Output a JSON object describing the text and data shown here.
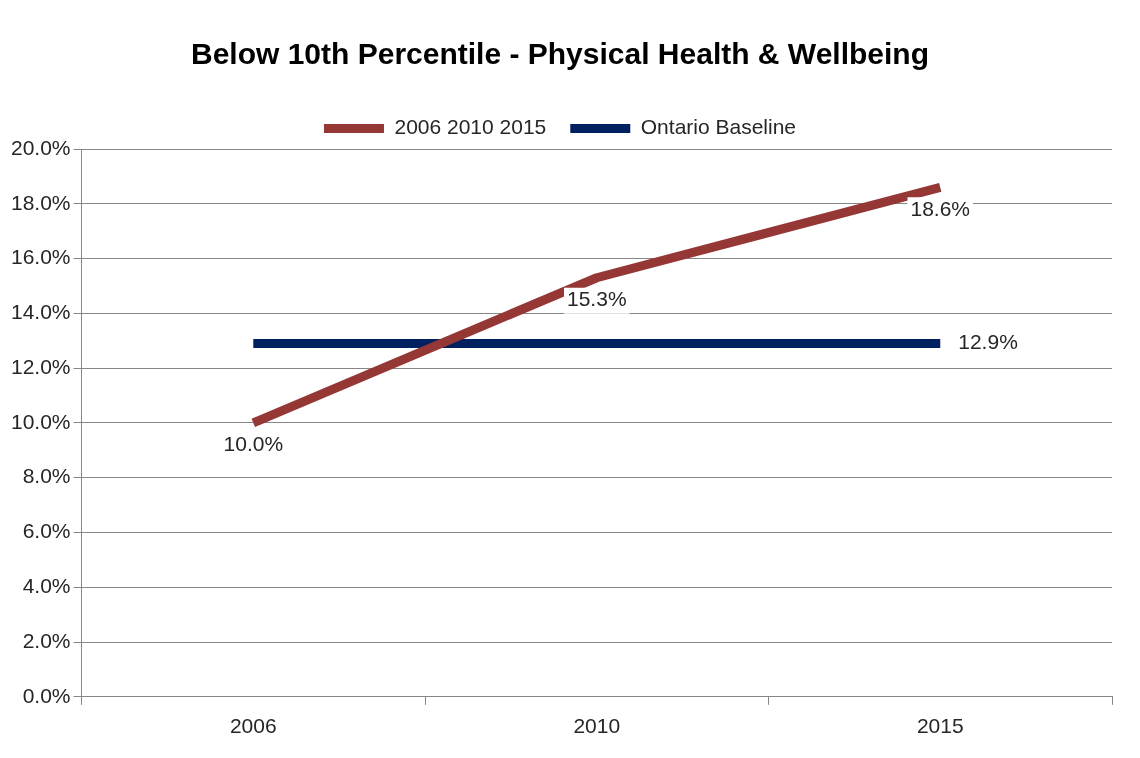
{
  "chart_data": {
    "type": "line",
    "title": "Below 10th Percentile - Physical Health & Wellbeing",
    "categories": [
      "2006",
      "2010",
      "2015"
    ],
    "series": [
      {
        "name": "2006 2010 2015",
        "color": "#953735",
        "values": [
          10.0,
          15.3,
          18.6
        ],
        "value_labels": [
          "10.0%",
          "15.3%",
          "18.6%"
        ]
      },
      {
        "name": "Ontario Baseline",
        "color": "#002060",
        "values": [
          12.9,
          12.9,
          12.9
        ],
        "value_labels": [
          null,
          null,
          "12.9%"
        ]
      }
    ],
    "ylim": [
      0,
      20
    ],
    "yticks": [
      {
        "value": 0,
        "label": "0.0%"
      },
      {
        "value": 2,
        "label": "2.0%"
      },
      {
        "value": 4,
        "label": "4.0%"
      },
      {
        "value": 6,
        "label": "6.0%"
      },
      {
        "value": 8,
        "label": "8.0%"
      },
      {
        "value": 10,
        "label": "10.0%"
      },
      {
        "value": 12,
        "label": "12.0%"
      },
      {
        "value": 14,
        "label": "14.0%"
      },
      {
        "value": 16,
        "label": "16.0%"
      },
      {
        "value": 18,
        "label": "18.0%"
      },
      {
        "value": 20,
        "label": "20.0%"
      }
    ],
    "grid": "y",
    "legend": "top",
    "marker": "none",
    "line_style": "solid"
  }
}
